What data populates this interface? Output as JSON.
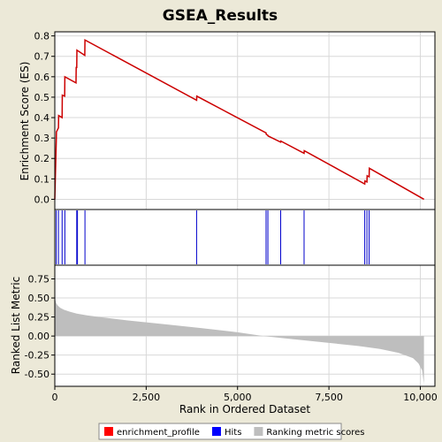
{
  "chart_data": {
    "type": "line",
    "title": "GSEA_Results",
    "xlabel": "Rank in Ordered Dataset",
    "xlim": [
      0,
      10400
    ],
    "xticks": [
      0,
      2500,
      5000,
      7500,
      10000
    ],
    "xtick_labels": [
      "0",
      "2,500",
      "5,000",
      "7,500",
      "10,000"
    ],
    "panels": {
      "es": {
        "ylabel": "Enrichment Score (ES)",
        "ylim": [
          -0.05,
          0.82
        ],
        "yticks": [
          0.0,
          0.1,
          0.2,
          0.3,
          0.4,
          0.5,
          0.6,
          0.7,
          0.8
        ],
        "ytick_labels": [
          "0.0",
          "0.1",
          "0.2",
          "0.3",
          "0.4",
          "0.5",
          "0.6",
          "0.7",
          "0.8"
        ]
      },
      "metric": {
        "ylabel": "Ranked List Metric",
        "ylim": [
          -0.66,
          0.93
        ],
        "yticks": [
          -0.5,
          -0.25,
          0.0,
          0.25,
          0.5,
          0.75
        ],
        "ytick_labels": [
          "-0.50",
          "-0.25",
          "0.00",
          "0.25",
          "0.50",
          "0.75"
        ]
      }
    },
    "series": [
      {
        "name": "enrichment_profile",
        "color": "#CC0000",
        "x": [
          0,
          40,
          45,
          100,
          105,
          200,
          205,
          270,
          275,
          580,
          585,
          600,
          605,
          820,
          825,
          3880,
          3885,
          5780,
          5785,
          5830,
          5835,
          6180,
          6185,
          6820,
          6825,
          8480,
          8485,
          8540,
          8545,
          8600,
          8605,
          10100
        ],
        "y": [
          0.0,
          0.285,
          0.33,
          0.35,
          0.41,
          0.4,
          0.51,
          0.505,
          0.6,
          0.57,
          0.645,
          0.645,
          0.73,
          0.705,
          0.78,
          0.485,
          0.505,
          0.325,
          0.318,
          0.313,
          0.31,
          0.28,
          0.285,
          0.225,
          0.238,
          0.075,
          0.09,
          0.085,
          0.115,
          0.11,
          0.152,
          0.0
        ]
      },
      {
        "name": "Hits",
        "color": "#0000CC",
        "x": [
          40,
          100,
          200,
          275,
          600,
          620,
          825,
          3880,
          5780,
          5830,
          6180,
          6820,
          8480,
          8540,
          8600
        ]
      },
      {
        "name": "Ranking metric scores",
        "color": "#BEBEBE",
        "x": [
          0,
          15,
          40,
          80,
          150,
          250,
          400,
          600,
          900,
          1300,
          2000,
          3000,
          4000,
          5000,
          5700,
          6500,
          7500,
          8300,
          8900,
          9400,
          9800,
          9950,
          10050,
          10100
        ],
        "y": [
          0.55,
          0.47,
          0.43,
          0.4,
          0.37,
          0.345,
          0.32,
          0.295,
          0.27,
          0.245,
          0.205,
          0.155,
          0.105,
          0.05,
          0.0,
          -0.04,
          -0.09,
          -0.13,
          -0.17,
          -0.22,
          -0.29,
          -0.36,
          -0.45,
          -0.63
        ]
      }
    ],
    "legend": {
      "position": "bottom",
      "entries": [
        {
          "label": "enrichment_profile",
          "color": "#FF0000"
        },
        {
          "label": "Hits",
          "color": "#0000FF"
        },
        {
          "label": "Ranking metric scores",
          "color": "#BEBEBE"
        }
      ]
    },
    "colors": {
      "background": "#ECE9D8",
      "plot_area": "#FFFFFF",
      "axis": "#000000",
      "grid": "#D8D8D8"
    }
  }
}
